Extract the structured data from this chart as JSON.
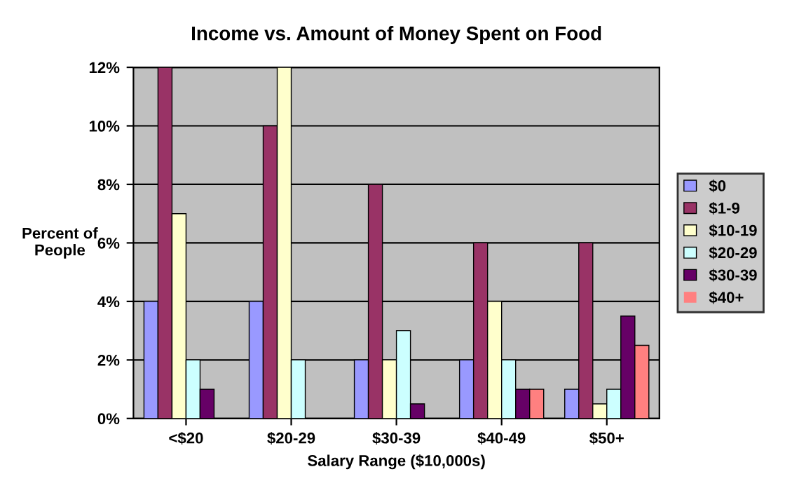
{
  "chart_data": {
    "type": "bar",
    "title": "Income vs. Amount of Money Spent on Food",
    "xlabel": "Salary Range ($10,000s)",
    "ylabel": "Percent of\nPeople",
    "categories": [
      "<$20",
      "$20-29",
      "$30-39",
      "$40-49",
      "$50+"
    ],
    "series": [
      {
        "name": "$0",
        "color": "#9999ff",
        "values": [
          4,
          4,
          2,
          2,
          1
        ]
      },
      {
        "name": "$1-9",
        "color": "#993366",
        "values": [
          12,
          10,
          8,
          6,
          6
        ]
      },
      {
        "name": "$10-19",
        "color": "#ffffcc",
        "values": [
          7,
          12,
          2,
          4,
          0.5
        ]
      },
      {
        "name": "$20-29",
        "color": "#ccffff",
        "values": [
          2,
          2,
          3,
          2,
          1
        ]
      },
      {
        "name": "$30-39",
        "color": "#660066",
        "values": [
          1,
          0,
          0.5,
          1,
          3.5
        ]
      },
      {
        "name": "$40+",
        "color": "#ff8080",
        "values": [
          0,
          0,
          0,
          1,
          2.5
        ]
      }
    ],
    "ylim": [
      0,
      12
    ],
    "yticks": [
      {
        "value": 0,
        "label": "0%"
      },
      {
        "value": 2,
        "label": "2%"
      },
      {
        "value": 4,
        "label": "4%"
      },
      {
        "value": 6,
        "label": "6%"
      },
      {
        "value": 8,
        "label": "8%"
      },
      {
        "value": 10,
        "label": "10%"
      },
      {
        "value": 12,
        "label": "12%"
      }
    ],
    "grid": "y",
    "legend": "right"
  }
}
